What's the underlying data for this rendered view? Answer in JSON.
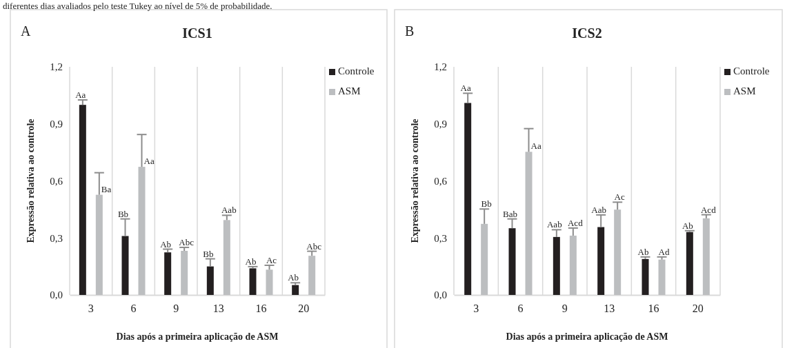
{
  "chart_data": [
    {
      "type": "bar",
      "title": "ICS1",
      "xlabel": "Dias após a primeira aplicação de ASM",
      "ylabel": "Expressão relativa ao controle",
      "annotations": [
        "A",
        "diferentes dias avaliados pelo teste Tukey ao nível de 5% de probabilidade."
      ],
      "categories": [
        "3",
        "6",
        "9",
        "13",
        "16",
        "20"
      ],
      "series": [
        {
          "name": "Controle",
          "color": "#231f20",
          "values": [
            1.0,
            0.31,
            0.224,
            0.15,
            0.14,
            0.052
          ],
          "errors": [
            [
              1.0,
              1.026
            ],
            [
              0.31,
              0.4
            ],
            [
              0.224,
              0.241
            ],
            [
              0.15,
              0.19
            ],
            [
              0.14,
              0.149
            ],
            [
              0.052,
              0.064
            ]
          ],
          "value_labels": [
            "Aa",
            "Bb",
            "Ab",
            "Bb",
            "Ab",
            "Ab"
          ]
        },
        {
          "name": "ASM",
          "color": "#bcbec0",
          "values": [
            0.527,
            0.674,
            0.232,
            0.394,
            0.133,
            0.206
          ],
          "errors": [
            [
              0.527,
              0.643
            ],
            [
              0.674,
              0.844
            ],
            [
              0.232,
              0.25
            ],
            [
              0.394,
              0.419
            ],
            [
              0.133,
              0.156
            ],
            [
              0.206,
              0.23
            ]
          ],
          "value_labels": [
            "Ba",
            "Aa",
            "Abc",
            "Aab",
            "Ac",
            "Abc"
          ]
        }
      ],
      "ylim": [
        0,
        1.2
      ],
      "yticks": [
        {
          "value": 0,
          "label": "0,0"
        },
        {
          "value": 0.3,
          "label": "0,3"
        },
        {
          "value": 0.6,
          "label": "0,6"
        },
        {
          "value": 0.9,
          "label": "0,9"
        },
        {
          "value": 1.2,
          "label": "1,2"
        }
      ],
      "grid": "x",
      "legend": "top right"
    },
    {
      "type": "bar",
      "title": "ICS2",
      "xlabel": "Dias após a primeira aplicação de ASM",
      "ylabel": "Expressão relativa ao controle",
      "annotations": [
        "B"
      ],
      "categories": [
        "3",
        "6",
        "9",
        "13",
        "16",
        "20"
      ],
      "series": [
        {
          "name": "Controle",
          "color": "#231f20",
          "values": [
            1.01,
            0.351,
            0.305,
            0.357,
            0.189,
            0.331
          ],
          "errors": [
            [
              1.01,
              1.061
            ],
            [
              0.351,
              0.4
            ],
            [
              0.305,
              0.343
            ],
            [
              0.357,
              0.421
            ],
            [
              0.189,
              0.2
            ],
            [
              0.331,
              0.338
            ]
          ],
          "value_labels": [
            "Aa",
            "Bab",
            "Aab",
            "Aab",
            "Ab",
            "Ab"
          ]
        },
        {
          "name": "ASM",
          "color": "#bcbec0",
          "values": [
            0.374,
            0.753,
            0.312,
            0.449,
            0.186,
            0.403
          ],
          "errors": [
            [
              0.374,
              0.452
            ],
            [
              0.753,
              0.875
            ],
            [
              0.312,
              0.352
            ],
            [
              0.449,
              0.488
            ],
            [
              0.186,
              0.2
            ],
            [
              0.403,
              0.422
            ]
          ],
          "value_labels": [
            "Bb",
            "Aa",
            "Acd",
            "Ac",
            "Ad",
            "Acd"
          ]
        }
      ],
      "ylim": [
        0,
        1.2
      ],
      "yticks": [
        {
          "value": 0,
          "label": "0,0"
        },
        {
          "value": 0.3,
          "label": "0,3"
        },
        {
          "value": 0.6,
          "label": "0,6"
        },
        {
          "value": 0.9,
          "label": "0,9"
        },
        {
          "value": 1.2,
          "label": "1,2"
        }
      ],
      "grid": "x",
      "legend": "top right"
    }
  ]
}
